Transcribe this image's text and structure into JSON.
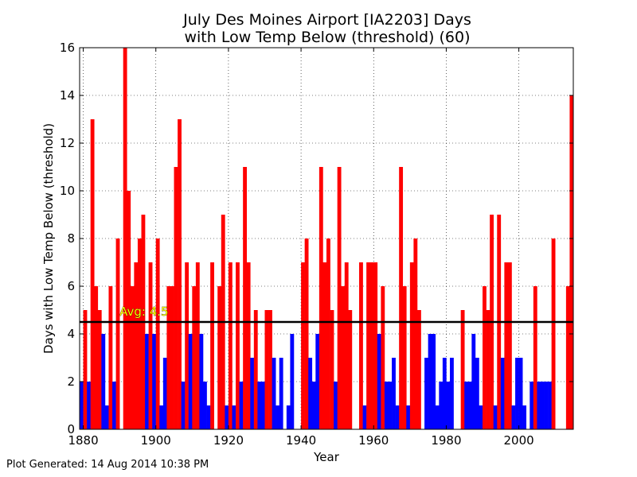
{
  "footer": {
    "generated": "Plot Generated: 14 Aug 2014 10:38 PM"
  },
  "chart_data": {
    "type": "bar",
    "title": "July Des Moines Airport [IA2203] Days\nwith Low Temp Below (threshold) (60)",
    "xlabel": "Year",
    "ylabel": "Days with Low Temp Below (threshold)",
    "xlim": [
      1879,
      2015
    ],
    "ylim": [
      0,
      16
    ],
    "xticks": [
      1880,
      1900,
      1920,
      1940,
      1960,
      1980,
      2000
    ],
    "yticks": [
      0,
      2,
      4,
      6,
      8,
      10,
      12,
      14,
      16
    ],
    "grid": true,
    "average": {
      "value": 4.5,
      "label": "Avg: 4.5"
    },
    "colors": {
      "above_avg": "#ff0000",
      "below_avg": "#0000ff",
      "avg_line": "#000000",
      "avg_text": "#ffff00"
    },
    "x": [
      1879,
      1880,
      1881,
      1882,
      1883,
      1884,
      1885,
      1886,
      1887,
      1888,
      1889,
      1890,
      1891,
      1892,
      1893,
      1894,
      1895,
      1896,
      1897,
      1898,
      1899,
      1900,
      1901,
      1902,
      1903,
      1904,
      1905,
      1906,
      1907,
      1908,
      1909,
      1910,
      1911,
      1912,
      1913,
      1914,
      1915,
      1916,
      1917,
      1918,
      1919,
      1920,
      1921,
      1922,
      1923,
      1924,
      1925,
      1926,
      1927,
      1928,
      1929,
      1930,
      1931,
      1932,
      1933,
      1934,
      1935,
      1936,
      1937,
      1938,
      1939,
      1940,
      1941,
      1942,
      1943,
      1944,
      1945,
      1946,
      1947,
      1948,
      1949,
      1950,
      1951,
      1952,
      1953,
      1954,
      1955,
      1956,
      1957,
      1958,
      1959,
      1960,
      1961,
      1962,
      1963,
      1964,
      1965,
      1966,
      1967,
      1968,
      1969,
      1970,
      1971,
      1972,
      1973,
      1974,
      1975,
      1976,
      1977,
      1978,
      1979,
      1980,
      1981,
      1982,
      1983,
      1984,
      1985,
      1986,
      1987,
      1988,
      1989,
      1990,
      1991,
      1992,
      1993,
      1994,
      1995,
      1996,
      1997,
      1998,
      1999,
      2000,
      2001,
      2002,
      2003,
      2004,
      2005,
      2006,
      2007,
      2008,
      2009,
      2010,
      2011,
      2012,
      2013,
      2014
    ],
    "values": [
      2,
      5,
      2,
      13,
      6,
      5,
      4,
      1,
      6,
      2,
      8,
      0,
      16,
      10,
      6,
      7,
      8,
      9,
      4,
      7,
      4,
      8,
      1,
      3,
      6,
      6,
      11,
      13,
      2,
      7,
      4,
      6,
      7,
      4,
      2,
      1,
      7,
      0,
      6,
      9,
      1,
      7,
      1,
      7,
      2,
      11,
      7,
      3,
      5,
      2,
      2,
      5,
      5,
      3,
      1,
      3,
      0,
      1,
      4,
      0,
      0,
      7,
      8,
      3,
      2,
      4,
      11,
      7,
      8,
      5,
      2,
      11,
      6,
      7,
      5,
      0,
      0,
      7,
      1,
      7,
      7,
      7,
      4,
      6,
      2,
      2,
      3,
      1,
      11,
      6,
      1,
      7,
      8,
      5,
      0,
      3,
      4,
      4,
      1,
      2,
      3,
      2,
      3,
      0,
      0,
      5,
      2,
      2,
      4,
      3,
      1,
      6,
      5,
      9,
      1,
      9,
      3,
      7,
      7,
      1,
      3,
      3,
      1,
      0,
      2,
      6,
      2,
      2,
      2,
      2,
      8,
      0,
      0,
      0,
      6,
      14
    ]
  }
}
